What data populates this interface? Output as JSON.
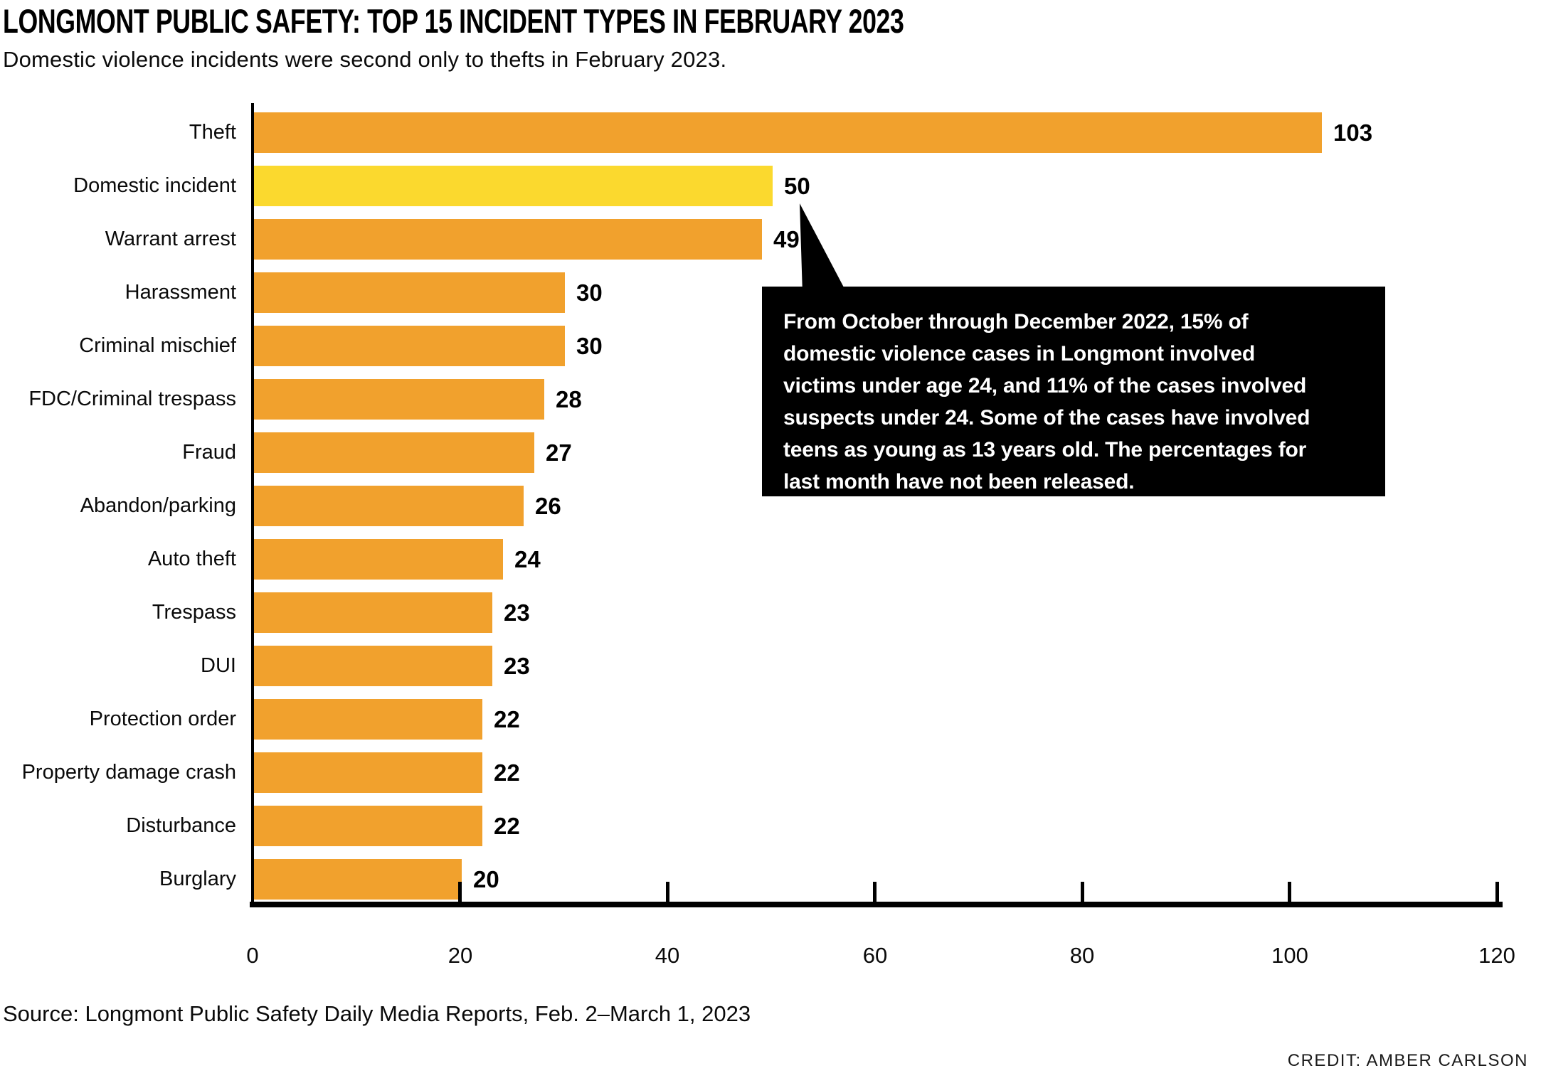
{
  "header": {
    "title": "LONGMONT PUBLIC SAFETY: TOP 15 INCIDENT TYPES IN FEBRUARY 2023",
    "subtitle": "Domestic violence incidents were second only to thefts in February 2023."
  },
  "chart_data": {
    "type": "bar",
    "orientation": "horizontal",
    "categories": [
      "Theft",
      "Domestic incident",
      "Warrant arrest",
      "Harassment",
      "Criminal mischief",
      "FDC/Criminal trespass",
      "Fraud",
      "Abandon/parking",
      "Auto theft",
      "Trespass",
      "DUI",
      "Protection order",
      "Property damage crash",
      "Disturbance",
      "Burglary"
    ],
    "values": [
      103,
      50,
      49,
      30,
      30,
      28,
      27,
      26,
      24,
      23,
      23,
      22,
      22,
      22,
      20
    ],
    "highlight_index": 1,
    "title": "LONGMONT PUBLIC SAFETY: TOP 15 INCIDENT TYPES IN FEBRUARY 2023",
    "xlabel": "",
    "ylabel": "",
    "xlim": [
      0,
      120
    ],
    "x_ticks": [
      0,
      20,
      40,
      60,
      80,
      100,
      120
    ],
    "grid": false,
    "legend": false
  },
  "colors": {
    "bar": "#F1A12D",
    "highlight": "#FBD92E",
    "axis": "#000000",
    "callout_bg": "#000000",
    "callout_text": "#FFFFFF"
  },
  "callout": {
    "lines": [
      "From October through December 2022, 15% of",
      "domestic violence cases in Longmont involved",
      "victims under age 24, and 11% of the cases involved",
      "suspects under 24. Some of the cases have involved",
      "teens as young as 13 years old. The percentages for",
      "last month have not been released."
    ]
  },
  "footer": {
    "source": "Source: Longmont Public Safety Daily Media Reports, Feb. 2–March 1, 2023",
    "credit": "CREDIT: AMBER CARLSON"
  }
}
